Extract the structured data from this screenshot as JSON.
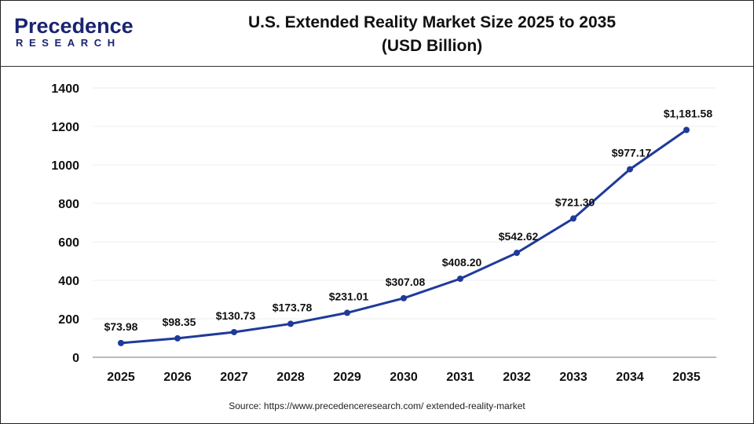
{
  "logo": {
    "line1": "Precedence",
    "line2": "RESEARCH"
  },
  "title_line1": "U.S. Extended Reality Market Size 2025 to 2035",
  "title_line2": "(USD Billion)",
  "source": "Source: https://www.precedenceresearch.com/ extended-reality-market",
  "chart_data": {
    "type": "line",
    "title": "U.S. Extended Reality Market Size 2025 to 2035 (USD Billion)",
    "categories": [
      "2025",
      "2026",
      "2027",
      "2028",
      "2029",
      "2030",
      "2031",
      "2032",
      "2033",
      "2034",
      "2035"
    ],
    "values": [
      73.98,
      98.35,
      130.73,
      173.78,
      231.01,
      307.08,
      408.2,
      542.62,
      721.3,
      977.17,
      1181.58
    ],
    "data_labels": [
      "$73.98",
      "$98.35",
      "$130.73",
      "$173.78",
      "$231.01",
      "$307.08",
      "$408.20",
      "$542.62",
      "$721.30",
      "$977.17",
      "$1,181.58"
    ],
    "ylim": [
      0,
      1400
    ],
    "yticks": [
      0,
      200,
      400,
      600,
      800,
      1000,
      1200,
      1400
    ],
    "grid": true,
    "line_color": "#1f3a9a"
  }
}
